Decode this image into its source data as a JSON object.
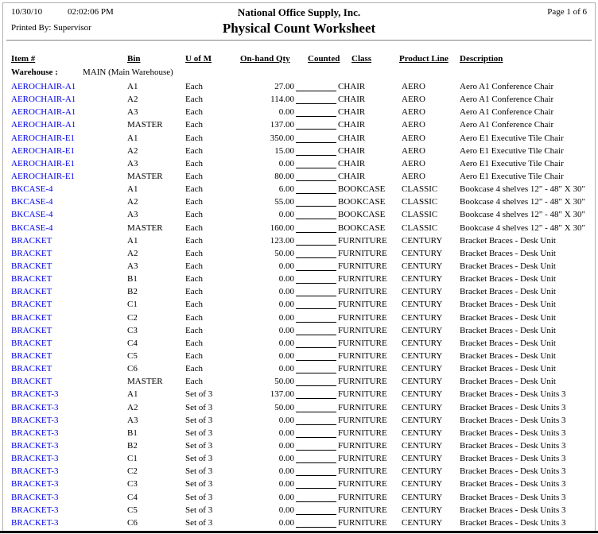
{
  "report": {
    "date": "10/30/10",
    "time": "02:02:06 PM",
    "company": "National Office Supply, Inc.",
    "page_info": "Page 1 of 6",
    "printed_by": "Printed By: Supervisor",
    "title": "Physical Count Worksheet"
  },
  "columns": [
    "Item #",
    "Bin",
    "U of M",
    "On-hand Qty",
    "Counted",
    "Class",
    "Product Line",
    "Description"
  ],
  "warehouse": {
    "label": "Warehouse :",
    "value": "MAIN (Main Warehouse)"
  },
  "colors": {
    "item_link_blue": "#0000EE",
    "text": "#000000",
    "header_divider_gray": "#808080",
    "page_bottom_edge": "#000000"
  },
  "rows": [
    {
      "item": "AEROCHAIR-A1",
      "bin": "A1",
      "uom": "Each",
      "qty": "27.00",
      "class": "CHAIR",
      "product_line": "AERO",
      "description": "Aero A1 Conference Chair"
    },
    {
      "item": "AEROCHAIR-A1",
      "bin": "A2",
      "uom": "Each",
      "qty": "114.00",
      "class": "CHAIR",
      "product_line": "AERO",
      "description": "Aero A1 Conference Chair"
    },
    {
      "item": "AEROCHAIR-A1",
      "bin": "A3",
      "uom": "Each",
      "qty": "0.00",
      "class": "CHAIR",
      "product_line": "AERO",
      "description": "Aero A1 Conference Chair"
    },
    {
      "item": "AEROCHAIR-A1",
      "bin": "MASTER",
      "uom": "Each",
      "qty": "137.00",
      "class": "CHAIR",
      "product_line": "AERO",
      "description": "Aero A1 Conference Chair"
    },
    {
      "item": "AEROCHAIR-E1",
      "bin": "A1",
      "uom": "Each",
      "qty": "350.00",
      "class": "CHAIR",
      "product_line": "AERO",
      "description": "Aero E1 Executive Tile Chair"
    },
    {
      "item": "AEROCHAIR-E1",
      "bin": "A2",
      "uom": "Each",
      "qty": "15.00",
      "class": "CHAIR",
      "product_line": "AERO",
      "description": "Aero E1 Executive Tile Chair"
    },
    {
      "item": "AEROCHAIR-E1",
      "bin": "A3",
      "uom": "Each",
      "qty": "0.00",
      "class": "CHAIR",
      "product_line": "AERO",
      "description": "Aero E1 Executive Tile Chair"
    },
    {
      "item": "AEROCHAIR-E1",
      "bin": "MASTER",
      "uom": "Each",
      "qty": "80.00",
      "class": "CHAIR",
      "product_line": "AERO",
      "description": "Aero E1 Executive Tile Chair"
    },
    {
      "item": "BKCASE-4",
      "bin": "A1",
      "uom": "Each",
      "qty": "6.00",
      "class": "BOOKCASE",
      "product_line": "CLASSIC",
      "description": "Bookcase 4 shelves 12\" - 48\" X 30\""
    },
    {
      "item": "BKCASE-4",
      "bin": "A2",
      "uom": "Each",
      "qty": "55.00",
      "class": "BOOKCASE",
      "product_line": "CLASSIC",
      "description": "Bookcase 4 shelves 12\" - 48\" X 30\""
    },
    {
      "item": "BKCASE-4",
      "bin": "A3",
      "uom": "Each",
      "qty": "0.00",
      "class": "BOOKCASE",
      "product_line": "CLASSIC",
      "description": "Bookcase 4 shelves 12\" - 48\" X 30\""
    },
    {
      "item": "BKCASE-4",
      "bin": "MASTER",
      "uom": "Each",
      "qty": "160.00",
      "class": "BOOKCASE",
      "product_line": "CLASSIC",
      "description": "Bookcase 4 shelves 12\" - 48\" X 30\""
    },
    {
      "item": "BRACKET",
      "bin": "A1",
      "uom": "Each",
      "qty": "123.00",
      "class": "FURNITURE",
      "product_line": "CENTURY",
      "description": "Bracket Braces - Desk Unit"
    },
    {
      "item": "BRACKET",
      "bin": "A2",
      "uom": "Each",
      "qty": "50.00",
      "class": "FURNITURE",
      "product_line": "CENTURY",
      "description": "Bracket Braces - Desk Unit"
    },
    {
      "item": "BRACKET",
      "bin": "A3",
      "uom": "Each",
      "qty": "0.00",
      "class": "FURNITURE",
      "product_line": "CENTURY",
      "description": "Bracket Braces - Desk Unit"
    },
    {
      "item": "BRACKET",
      "bin": "B1",
      "uom": "Each",
      "qty": "0.00",
      "class": "FURNITURE",
      "product_line": "CENTURY",
      "description": "Bracket Braces - Desk Unit"
    },
    {
      "item": "BRACKET",
      "bin": "B2",
      "uom": "Each",
      "qty": "0.00",
      "class": "FURNITURE",
      "product_line": "CENTURY",
      "description": "Bracket Braces - Desk Unit"
    },
    {
      "item": "BRACKET",
      "bin": "C1",
      "uom": "Each",
      "qty": "0.00",
      "class": "FURNITURE",
      "product_line": "CENTURY",
      "description": "Bracket Braces - Desk Unit"
    },
    {
      "item": "BRACKET",
      "bin": "C2",
      "uom": "Each",
      "qty": "0.00",
      "class": "FURNITURE",
      "product_line": "CENTURY",
      "description": "Bracket Braces - Desk Unit"
    },
    {
      "item": "BRACKET",
      "bin": "C3",
      "uom": "Each",
      "qty": "0.00",
      "class": "FURNITURE",
      "product_line": "CENTURY",
      "description": "Bracket Braces - Desk Unit"
    },
    {
      "item": "BRACKET",
      "bin": "C4",
      "uom": "Each",
      "qty": "0.00",
      "class": "FURNITURE",
      "product_line": "CENTURY",
      "description": "Bracket Braces - Desk Unit"
    },
    {
      "item": "BRACKET",
      "bin": "C5",
      "uom": "Each",
      "qty": "0.00",
      "class": "FURNITURE",
      "product_line": "CENTURY",
      "description": "Bracket Braces - Desk Unit"
    },
    {
      "item": "BRACKET",
      "bin": "C6",
      "uom": "Each",
      "qty": "0.00",
      "class": "FURNITURE",
      "product_line": "CENTURY",
      "description": "Bracket Braces - Desk Unit"
    },
    {
      "item": "BRACKET",
      "bin": "MASTER",
      "uom": "Each",
      "qty": "50.00",
      "class": "FURNITURE",
      "product_line": "CENTURY",
      "description": "Bracket Braces - Desk Unit"
    },
    {
      "item": "BRACKET-3",
      "bin": "A1",
      "uom": "Set of 3",
      "qty": "137.00",
      "class": "FURNITURE",
      "product_line": "CENTURY",
      "description": "Bracket Braces - Desk Units 3"
    },
    {
      "item": "BRACKET-3",
      "bin": "A2",
      "uom": "Set of 3",
      "qty": "50.00",
      "class": "FURNITURE",
      "product_line": "CENTURY",
      "description": "Bracket Braces - Desk Units 3"
    },
    {
      "item": "BRACKET-3",
      "bin": "A3",
      "uom": "Set of 3",
      "qty": "0.00",
      "class": "FURNITURE",
      "product_line": "CENTURY",
      "description": "Bracket Braces - Desk Units 3"
    },
    {
      "item": "BRACKET-3",
      "bin": "B1",
      "uom": "Set of 3",
      "qty": "0.00",
      "class": "FURNITURE",
      "product_line": "CENTURY",
      "description": "Bracket Braces - Desk Units 3"
    },
    {
      "item": "BRACKET-3",
      "bin": "B2",
      "uom": "Set of 3",
      "qty": "0.00",
      "class": "FURNITURE",
      "product_line": "CENTURY",
      "description": "Bracket Braces - Desk Units 3"
    },
    {
      "item": "BRACKET-3",
      "bin": "C1",
      "uom": "Set of 3",
      "qty": "0.00",
      "class": "FURNITURE",
      "product_line": "CENTURY",
      "description": "Bracket Braces - Desk Units 3"
    },
    {
      "item": "BRACKET-3",
      "bin": "C2",
      "uom": "Set of 3",
      "qty": "0.00",
      "class": "FURNITURE",
      "product_line": "CENTURY",
      "description": "Bracket Braces - Desk Units 3"
    },
    {
      "item": "BRACKET-3",
      "bin": "C3",
      "uom": "Set of 3",
      "qty": "0.00",
      "class": "FURNITURE",
      "product_line": "CENTURY",
      "description": "Bracket Braces - Desk Units 3"
    },
    {
      "item": "BRACKET-3",
      "bin": "C4",
      "uom": "Set of 3",
      "qty": "0.00",
      "class": "FURNITURE",
      "product_line": "CENTURY",
      "description": "Bracket Braces - Desk Units 3"
    },
    {
      "item": "BRACKET-3",
      "bin": "C5",
      "uom": "Set of 3",
      "qty": "0.00",
      "class": "FURNITURE",
      "product_line": "CENTURY",
      "description": "Bracket Braces - Desk Units 3"
    },
    {
      "item": "BRACKET-3",
      "bin": "C6",
      "uom": "Set of 3",
      "qty": "0.00",
      "class": "FURNITURE",
      "product_line": "CENTURY",
      "description": "Bracket Braces - Desk Units 3"
    }
  ]
}
